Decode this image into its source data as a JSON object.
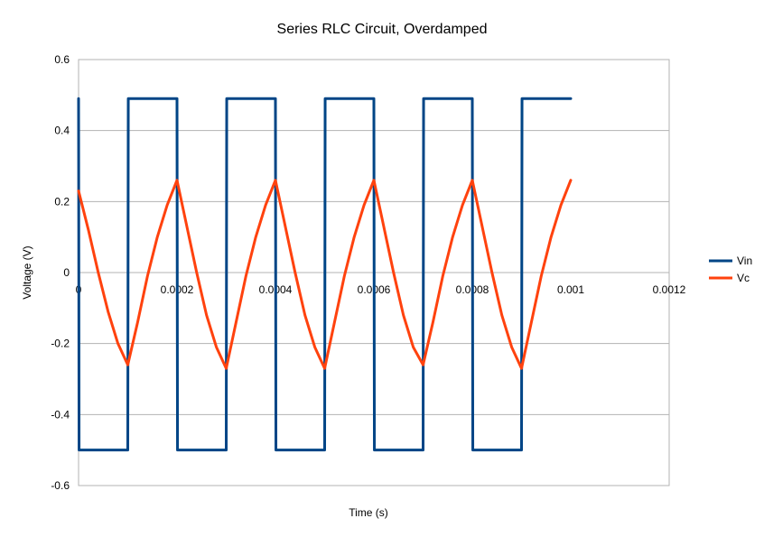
{
  "chart_data": {
    "type": "line",
    "title": "Series RLC Circuit, Overdamped",
    "xlabel": "Time (s)",
    "ylabel": "Voltage (V)",
    "xlim": [
      0,
      0.0012
    ],
    "ylim": [
      -0.6,
      0.6
    ],
    "x_ticks": [
      0,
      0.0002,
      0.0004,
      0.0006,
      0.0008,
      0.001,
      0.0012
    ],
    "x_tick_labels": [
      "0",
      "0.0002",
      "0.0004",
      "0.0006",
      "0.0008",
      "0.001",
      "0.0012"
    ],
    "y_ticks": [
      0.6,
      0.4,
      0.2,
      0,
      -0.2,
      -0.4,
      -0.6
    ],
    "y_tick_labels": [
      "0.6",
      "0.4",
      "0.2",
      "0",
      "-0.2",
      "-0.4",
      "-0.6"
    ],
    "grid": true,
    "legend_position": "right",
    "series": [
      {
        "name": "Vin",
        "color": "#004586",
        "points": [
          [
            0,
            0.49
          ],
          [
            1e-06,
            -0.5
          ],
          [
            0.0001,
            -0.5
          ],
          [
            0.000101,
            0.49
          ],
          [
            0.0002,
            0.49
          ],
          [
            0.000201,
            -0.5
          ],
          [
            0.0003,
            -0.5
          ],
          [
            0.000301,
            0.49
          ],
          [
            0.0004,
            0.49
          ],
          [
            0.000401,
            -0.5
          ],
          [
            0.0005,
            -0.5
          ],
          [
            0.000501,
            0.49
          ],
          [
            0.0006,
            0.49
          ],
          [
            0.000601,
            -0.5
          ],
          [
            0.0007,
            -0.5
          ],
          [
            0.000701,
            0.49
          ],
          [
            0.0008,
            0.49
          ],
          [
            0.000801,
            -0.5
          ],
          [
            0.0009,
            -0.5
          ],
          [
            0.000901,
            0.49
          ],
          [
            0.001,
            0.49
          ]
        ]
      },
      {
        "name": "Vc",
        "color": "#ff420e",
        "points": [
          [
            0,
            0.23
          ],
          [
            2e-05,
            0.12
          ],
          [
            4e-05,
            0.0
          ],
          [
            6e-05,
            -0.11
          ],
          [
            8e-05,
            -0.2
          ],
          [
            0.0001,
            -0.26
          ],
          [
            0.00012,
            -0.14
          ],
          [
            0.00014,
            -0.01
          ],
          [
            0.00016,
            0.1
          ],
          [
            0.00018,
            0.19
          ],
          [
            0.0002,
            0.26
          ],
          [
            0.00022,
            0.13
          ],
          [
            0.00024,
            0.0
          ],
          [
            0.00026,
            -0.12
          ],
          [
            0.00028,
            -0.21
          ],
          [
            0.0003,
            -0.27
          ],
          [
            0.00032,
            -0.14
          ],
          [
            0.00034,
            -0.01
          ],
          [
            0.00036,
            0.1
          ],
          [
            0.00038,
            0.19
          ],
          [
            0.0004,
            0.26
          ],
          [
            0.00042,
            0.13
          ],
          [
            0.00044,
            0.0
          ],
          [
            0.00046,
            -0.12
          ],
          [
            0.00048,
            -0.21
          ],
          [
            0.0005,
            -0.27
          ],
          [
            0.00052,
            -0.14
          ],
          [
            0.00054,
            -0.01
          ],
          [
            0.00056,
            0.1
          ],
          [
            0.00058,
            0.19
          ],
          [
            0.0006,
            0.26
          ],
          [
            0.00062,
            0.13
          ],
          [
            0.00064,
            0.0
          ],
          [
            0.00066,
            -0.12
          ],
          [
            0.00068,
            -0.21
          ],
          [
            0.0007,
            -0.26
          ],
          [
            0.00072,
            -0.14
          ],
          [
            0.00074,
            -0.01
          ],
          [
            0.00076,
            0.1
          ],
          [
            0.00078,
            0.19
          ],
          [
            0.0008,
            0.26
          ],
          [
            0.00082,
            0.13
          ],
          [
            0.00084,
            0.0
          ],
          [
            0.00086,
            -0.12
          ],
          [
            0.00088,
            -0.21
          ],
          [
            0.0009,
            -0.27
          ],
          [
            0.00092,
            -0.14
          ],
          [
            0.00094,
            -0.01
          ],
          [
            0.00096,
            0.1
          ],
          [
            0.00098,
            0.19
          ],
          [
            0.001,
            0.26
          ]
        ]
      }
    ]
  }
}
